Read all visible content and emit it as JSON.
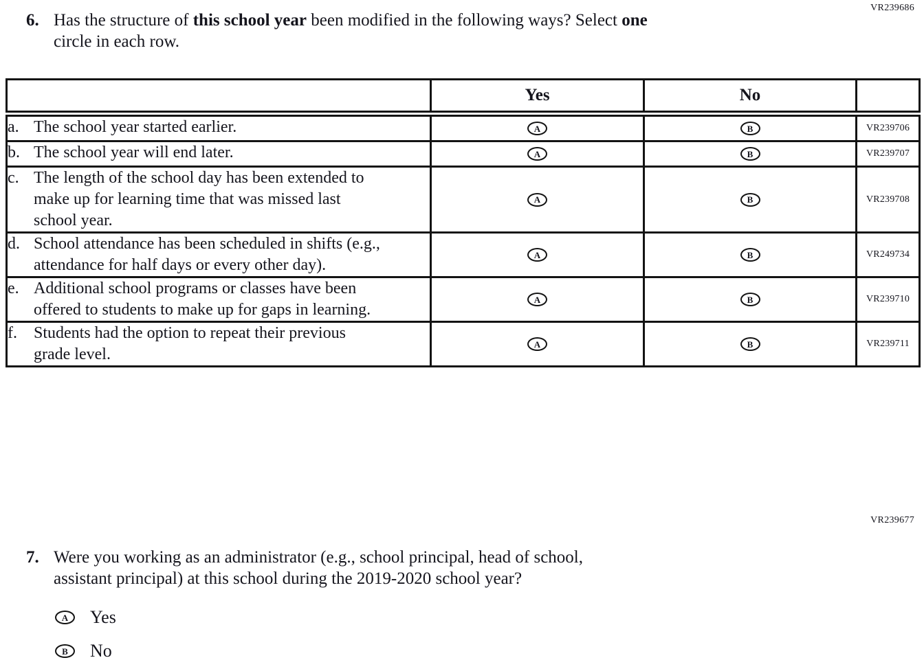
{
  "colors": {
    "text": "#15151d",
    "border": "#131313",
    "background": "#ffffff"
  },
  "question6": {
    "code": "VR239686",
    "number": "6.",
    "line1_t1": "Has the structure of ",
    "line1_b1": "this school year",
    "line1_t2": " been modified in the following ways? Select ",
    "line1_b2": "one",
    "line2": "circle in each row.",
    "table": {
      "header_yes": "Yes",
      "header_no": "No",
      "rows": [
        {
          "letter": "a.",
          "text": "The school year started earlier.",
          "yes": "A",
          "no": "B",
          "code": "VR239706"
        },
        {
          "letter": "b.",
          "text": "The school year will end later.",
          "yes": "A",
          "no": "B",
          "code": "VR239707"
        },
        {
          "letter": "c.",
          "text": "The length of the school day has been extended to make up for learning time that was missed last school year.",
          "yes": "A",
          "no": "B",
          "code": "VR239708"
        },
        {
          "letter": "d.",
          "text": "School attendance has been scheduled in shifts (e.g., attendance for half days or every other day).",
          "yes": "A",
          "no": "B",
          "code": "VR249734"
        },
        {
          "letter": "e.",
          "text": "Additional school programs or classes have been offered to students to make up for gaps in learning.",
          "yes": "A",
          "no": "B",
          "code": "VR239710"
        },
        {
          "letter": "f.",
          "text": "Students had the option to repeat their previous grade level.",
          "yes": "A",
          "no": "B",
          "code": "VR239711"
        }
      ]
    }
  },
  "question7": {
    "code": "VR239677",
    "number": "7.",
    "line1": "Were you working as an administrator (e.g., school principal, head of school,",
    "line2": "assistant principal) at this school during the 2019-2020 school year?",
    "options": [
      {
        "bubble": "A",
        "label": "Yes"
      },
      {
        "bubble": "B",
        "label": "No"
      }
    ]
  }
}
